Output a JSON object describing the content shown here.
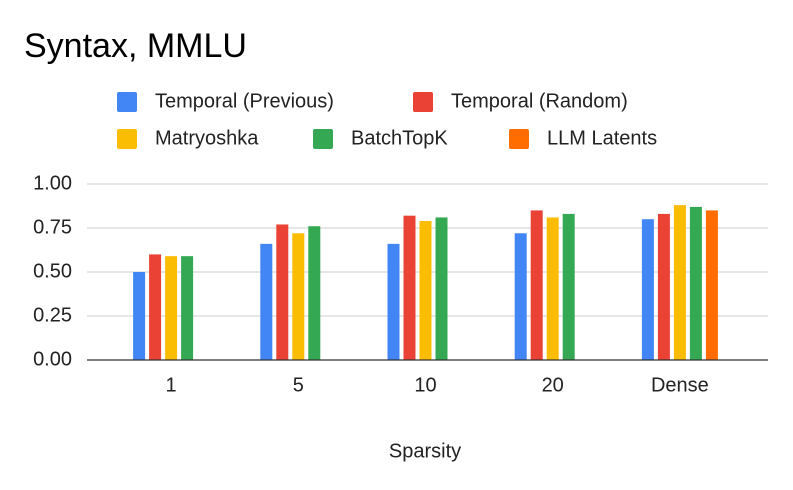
{
  "chart_data": {
    "type": "bar",
    "title": "Syntax, MMLU",
    "x_label": "Sparsity",
    "categories": [
      "1",
      "5",
      "10",
      "20",
      "Dense"
    ],
    "series": [
      {
        "name": "Temporal (Previous)",
        "color": "#4285f4",
        "values": [
          0.5,
          0.66,
          0.66,
          0.72,
          0.8
        ]
      },
      {
        "name": "Temporal (Random)",
        "color": "#ea4335",
        "values": [
          0.6,
          0.77,
          0.82,
          0.85,
          0.83
        ]
      },
      {
        "name": "Matryoshka",
        "color": "#fbbc04",
        "values": [
          0.59,
          0.72,
          0.79,
          0.81,
          0.88
        ]
      },
      {
        "name": "BatchTopK",
        "color": "#34a853",
        "values": [
          0.59,
          0.76,
          0.81,
          0.83,
          0.87
        ]
      },
      {
        "name": "LLM Latents",
        "color": "#ff6d01",
        "values": [
          null,
          null,
          null,
          null,
          0.85
        ]
      }
    ],
    "ylim": [
      0,
      1
    ],
    "yticks": [
      {
        "value": 0,
        "label": "0.00"
      },
      {
        "value": 0.25,
        "label": "0.25"
      },
      {
        "value": 0.5,
        "label": "0.50"
      },
      {
        "value": 0.75,
        "label": "0.75"
      },
      {
        "value": 1,
        "label": "1.00"
      }
    ],
    "grid": true,
    "legend": "top"
  }
}
